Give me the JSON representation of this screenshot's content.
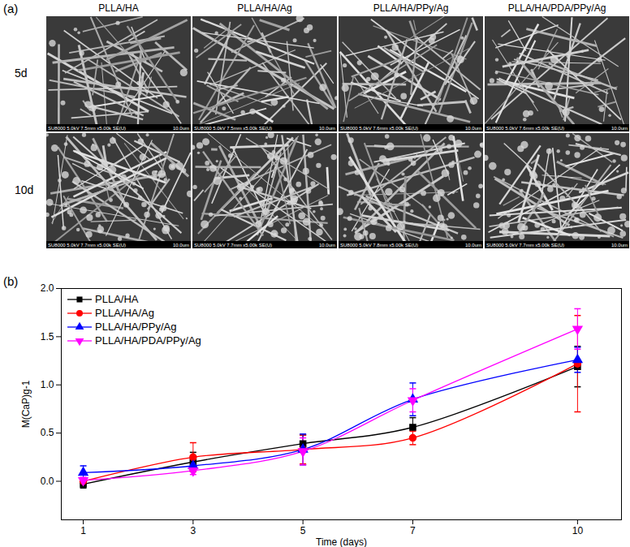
{
  "panel_a": {
    "panel_label": "(a)",
    "columns": [
      "PLLA/HA",
      "PLLA/HA/Ag",
      "PLLA/HA/PPy/Ag",
      "PLLA/HA/PDA/PPy/Ag"
    ],
    "rows": [
      "5d",
      "10d"
    ],
    "info": [
      [
        "SU8000 5.0kV 7.5mm x5.00k SE(U)",
        "SU8000 5.0kV 7.5mm x5.00k SE(U)",
        "SU8000 5.0kV 7.6mm x5.00k SE(U)",
        "SU8000 5.0kV 7.6mm x5.00k SE(U)"
      ],
      [
        "SU8000 5.0kV 7.7mm x5.00k SE(U)",
        "SU8000 5.0kV 7.7mm x5.00k SE(U)",
        "SU8000 5.0kV 7.8mm x5.00k SE(U)",
        "SU8000 5.0kV 7.7mm x5.00k SE(U)"
      ]
    ],
    "scale_bar": "10.0um"
  },
  "chart_data": {
    "type": "line",
    "panel_label": "(b)",
    "x_label": "Time (days)",
    "y_label": "M(CaP)g-1",
    "x": [
      1,
      3,
      5,
      7,
      10
    ],
    "xlim": [
      0.6,
      10.8
    ],
    "xticks": [
      1,
      3,
      5,
      7,
      10
    ],
    "ylim": [
      -0.4,
      2.0
    ],
    "yticks": [
      {
        "value": 0,
        "label": "0.0"
      },
      {
        "value": 0.5,
        "label": "0.5"
      },
      {
        "value": 1,
        "label": "1.0"
      },
      {
        "value": 1.5,
        "label": "1.5"
      },
      {
        "value": 2,
        "label": "2.0"
      }
    ],
    "grid": false,
    "legend": "upper left",
    "line_style": "smooth",
    "series": [
      {
        "name": "PLLA/HA",
        "color": "#000000",
        "marker": "square",
        "values": [
          -0.03,
          0.2,
          0.39,
          0.56,
          1.19
        ],
        "errors": [
          0.04,
          0.1,
          0.09,
          0.1,
          0.21
        ]
      },
      {
        "name": "PLLA/HA/Ag",
        "color": "#ff0000",
        "marker": "circle",
        "values": [
          0.0,
          0.25,
          0.33,
          0.45,
          1.22
        ],
        "errors": [
          0.02,
          0.15,
          0.15,
          0.07,
          0.5
        ]
      },
      {
        "name": "PLLA/HA/PPy/Ag",
        "color": "#0000ff",
        "marker": "triangle",
        "values": [
          0.09,
          0.16,
          0.33,
          0.85,
          1.26
        ],
        "errors": [
          0.07,
          0.05,
          0.16,
          0.17,
          0.13
        ]
      },
      {
        "name": "PLLA/HA/PDA/PPy/Ag",
        "color": "#ff00ff",
        "marker": "triangle-down",
        "values": [
          0.01,
          0.11,
          0.31,
          0.84,
          1.58
        ],
        "errors": [
          0.03,
          0.04,
          0.14,
          0.12,
          0.21
        ]
      }
    ]
  }
}
